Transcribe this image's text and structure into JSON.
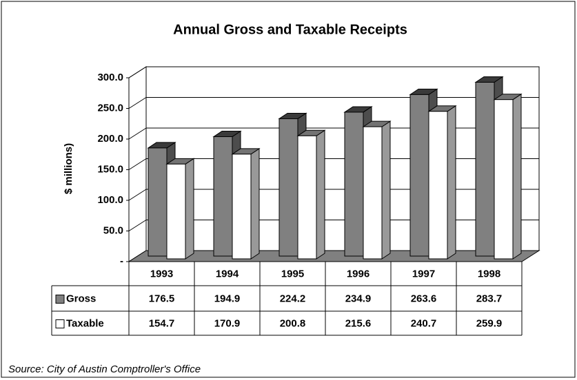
{
  "chart_data": {
    "type": "bar3d",
    "title": "Annual Gross and Taxable Receipts",
    "y_label": "$ millions)",
    "source": "Source: City of Austin Comptroller's Office",
    "categories": [
      "1993",
      "1994",
      "1995",
      "1996",
      "1997",
      "1998"
    ],
    "series": [
      {
        "name": "Gross",
        "color": "#808080",
        "values": [
          176.5,
          194.9,
          224.2,
          234.9,
          263.6,
          283.7
        ]
      },
      {
        "name": "Taxable",
        "color": "#ffffff",
        "values": [
          154.7,
          170.9,
          200.8,
          215.6,
          240.7,
          259.9
        ]
      }
    ],
    "ylim": [
      0,
      300
    ],
    "yticks": [
      {
        "value": 0,
        "label": "-"
      },
      {
        "value": 50,
        "label": "50.0"
      },
      {
        "value": 100,
        "label": "100.0"
      },
      {
        "value": 150,
        "label": "150.0"
      },
      {
        "value": 200,
        "label": "200.0"
      },
      {
        "value": 250,
        "label": "250.0"
      },
      {
        "value": 300,
        "label": "300.0"
      }
    ],
    "grid": true
  }
}
